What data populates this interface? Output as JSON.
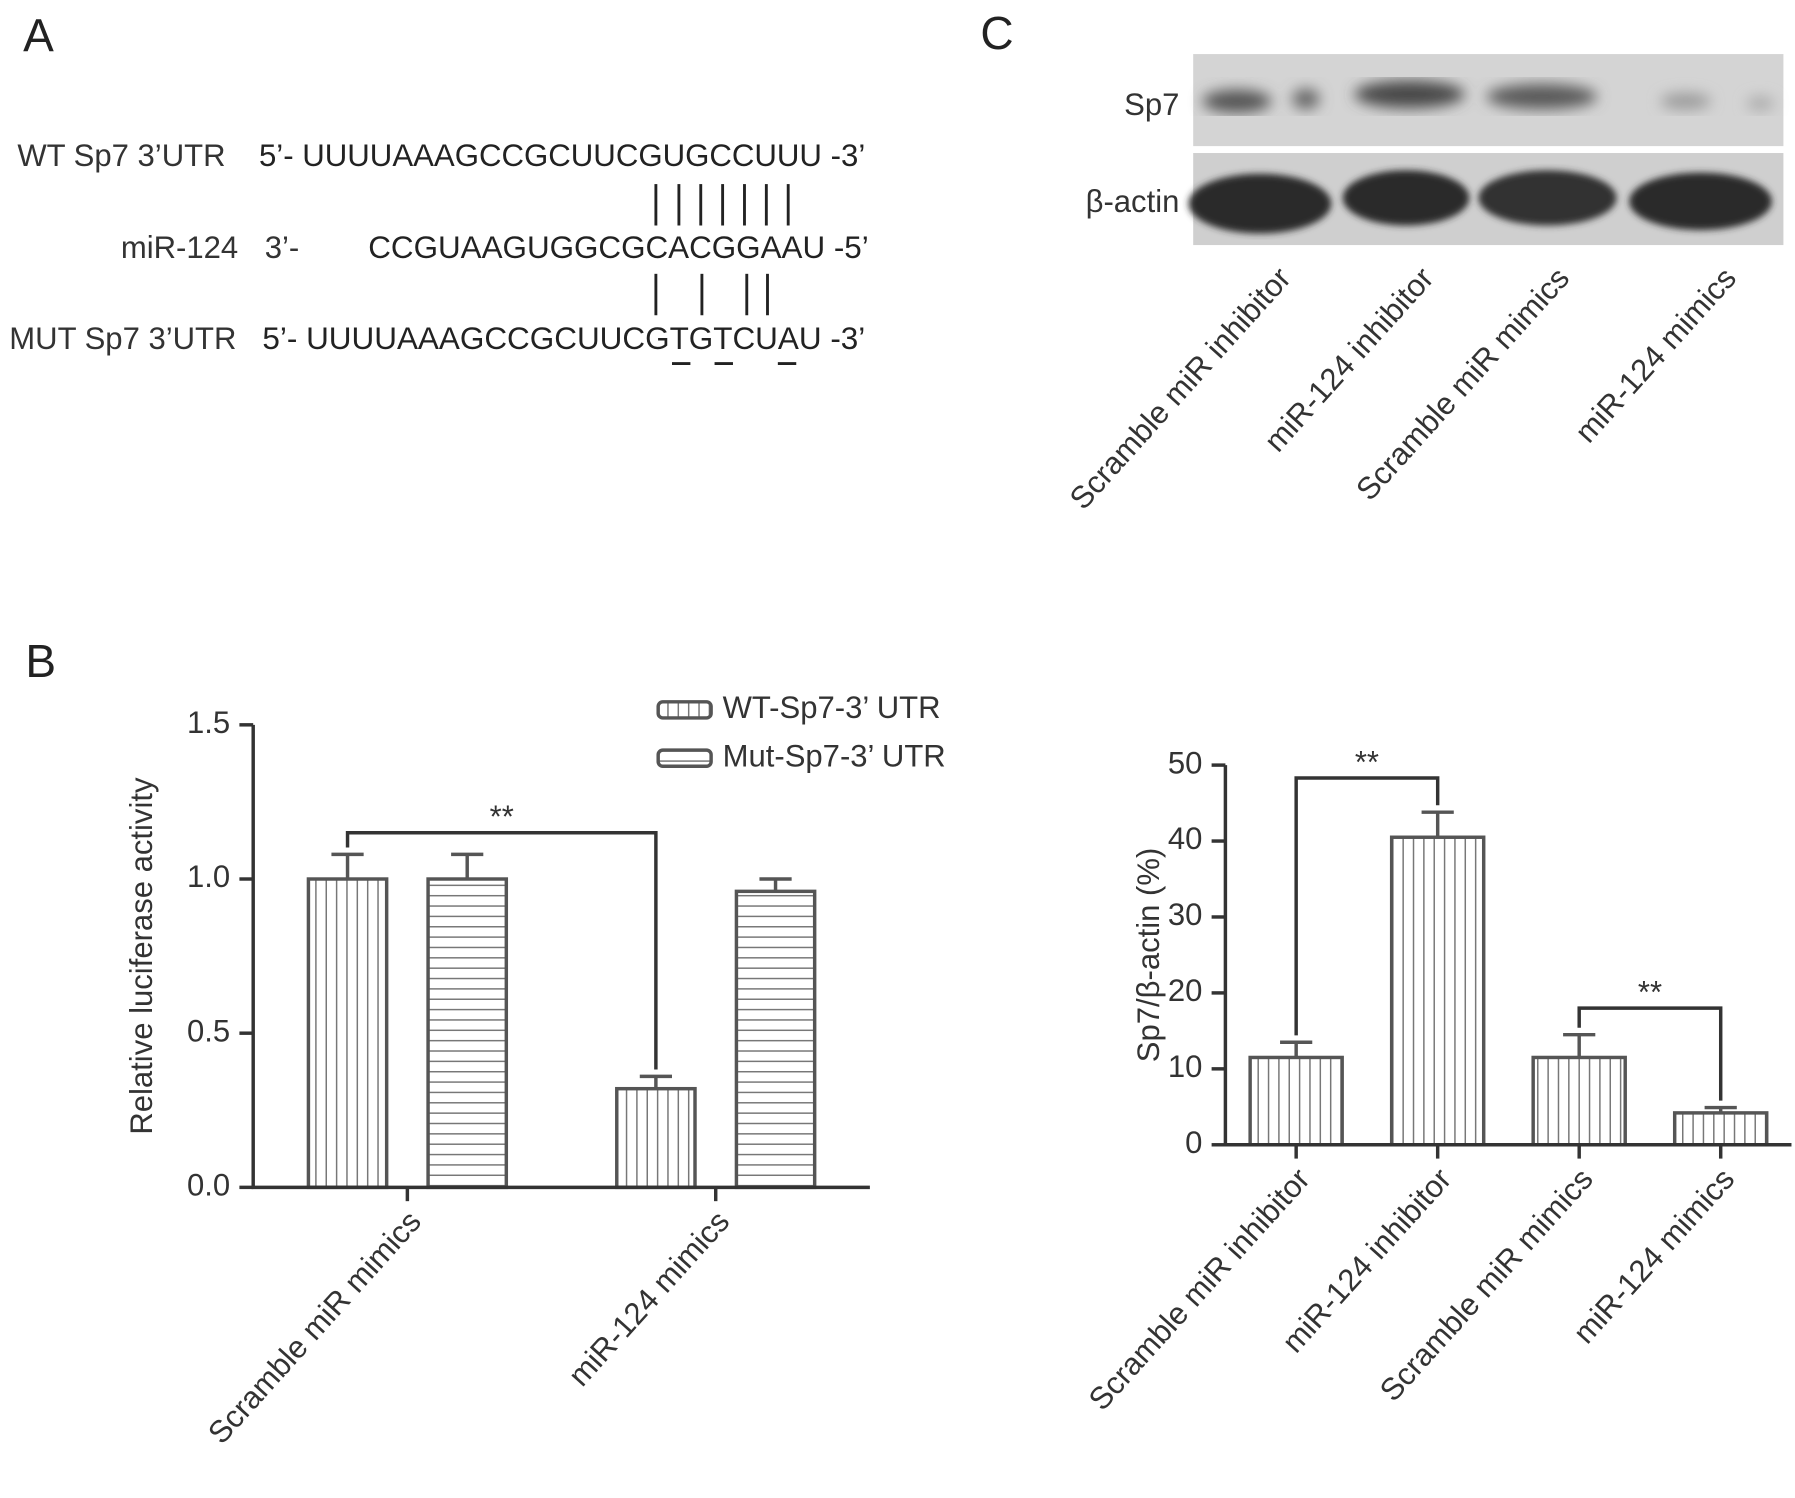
{
  "panel_a": {
    "label": "A",
    "rows": [
      {
        "name": "WT Sp7 3’UTR",
        "sequence": "5’- UUUUAAAGCCGCUUCGUGCCUUU -3’"
      },
      {
        "name": "miR-124",
        "prefix": "3’-",
        "sequence": "CCGUAAGUGGCGCACGGAAU -5’"
      },
      {
        "name": "MUT Sp7 3’UTR",
        "sequence": "5’- UUUUAAAGCCGCUUCGTGTCUAU -3’"
      }
    ]
  },
  "panel_b": {
    "label": "B"
  },
  "panel_c": {
    "label": "C",
    "blot": {
      "rows": [
        "Sp7",
        "β-actin"
      ],
      "lanes": [
        "Scramble miR inhibitor",
        "miR-124 inhibitor",
        "Scramble miR mimics",
        "miR-124 mimics"
      ]
    }
  },
  "chart_data": [
    {
      "type": "bar",
      "ylabel": "Relative luciferase activity",
      "categories": [
        "Scramble miR mimics",
        "miR-124 mimics"
      ],
      "series": [
        {
          "name": "WT-Sp7-3’ UTR",
          "color": "#555555",
          "pattern": "vertical",
          "values": [
            1.0,
            0.32
          ],
          "errors": [
            0.08,
            0.04
          ]
        },
        {
          "name": "Mut-Sp7-3’ UTR",
          "color": "#555555",
          "pattern": "horizontal",
          "values": [
            1.0,
            0.96
          ],
          "errors": [
            0.08,
            0.04
          ]
        }
      ],
      "ylim": [
        0,
        1.5
      ],
      "yticks": [
        {
          "value": 0,
          "label": "0.0"
        },
        {
          "value": 0.5,
          "label": "0.5"
        },
        {
          "value": 1,
          "label": "1.0"
        },
        {
          "value": 1.5,
          "label": "1.5"
        }
      ],
      "annotations": [
        {
          "text": "**",
          "y": 1.15,
          "series": 0,
          "from": 0,
          "to": 1
        }
      ]
    },
    {
      "type": "bar",
      "ylabel": "Sp7/β-actin (%)",
      "categories": [
        "Scramble miR inhibitor",
        "miR-124 inhibitor",
        "Scramble miR mimics",
        "miR-124 mimics"
      ],
      "values": [
        11.5,
        40.5,
        11.5,
        4.2
      ],
      "errors": [
        2.0,
        3.3,
        3.0,
        0.7
      ],
      "color": "#555555",
      "pattern": "vertical",
      "ylim": [
        0,
        50
      ],
      "yticks": [
        0,
        10,
        20,
        30,
        40,
        50
      ],
      "annotations": [
        {
          "text": "**",
          "y": 48.3,
          "from": 0,
          "to": 1
        },
        {
          "text": "**",
          "y": 18,
          "from": 2,
          "to": 3
        }
      ]
    }
  ]
}
